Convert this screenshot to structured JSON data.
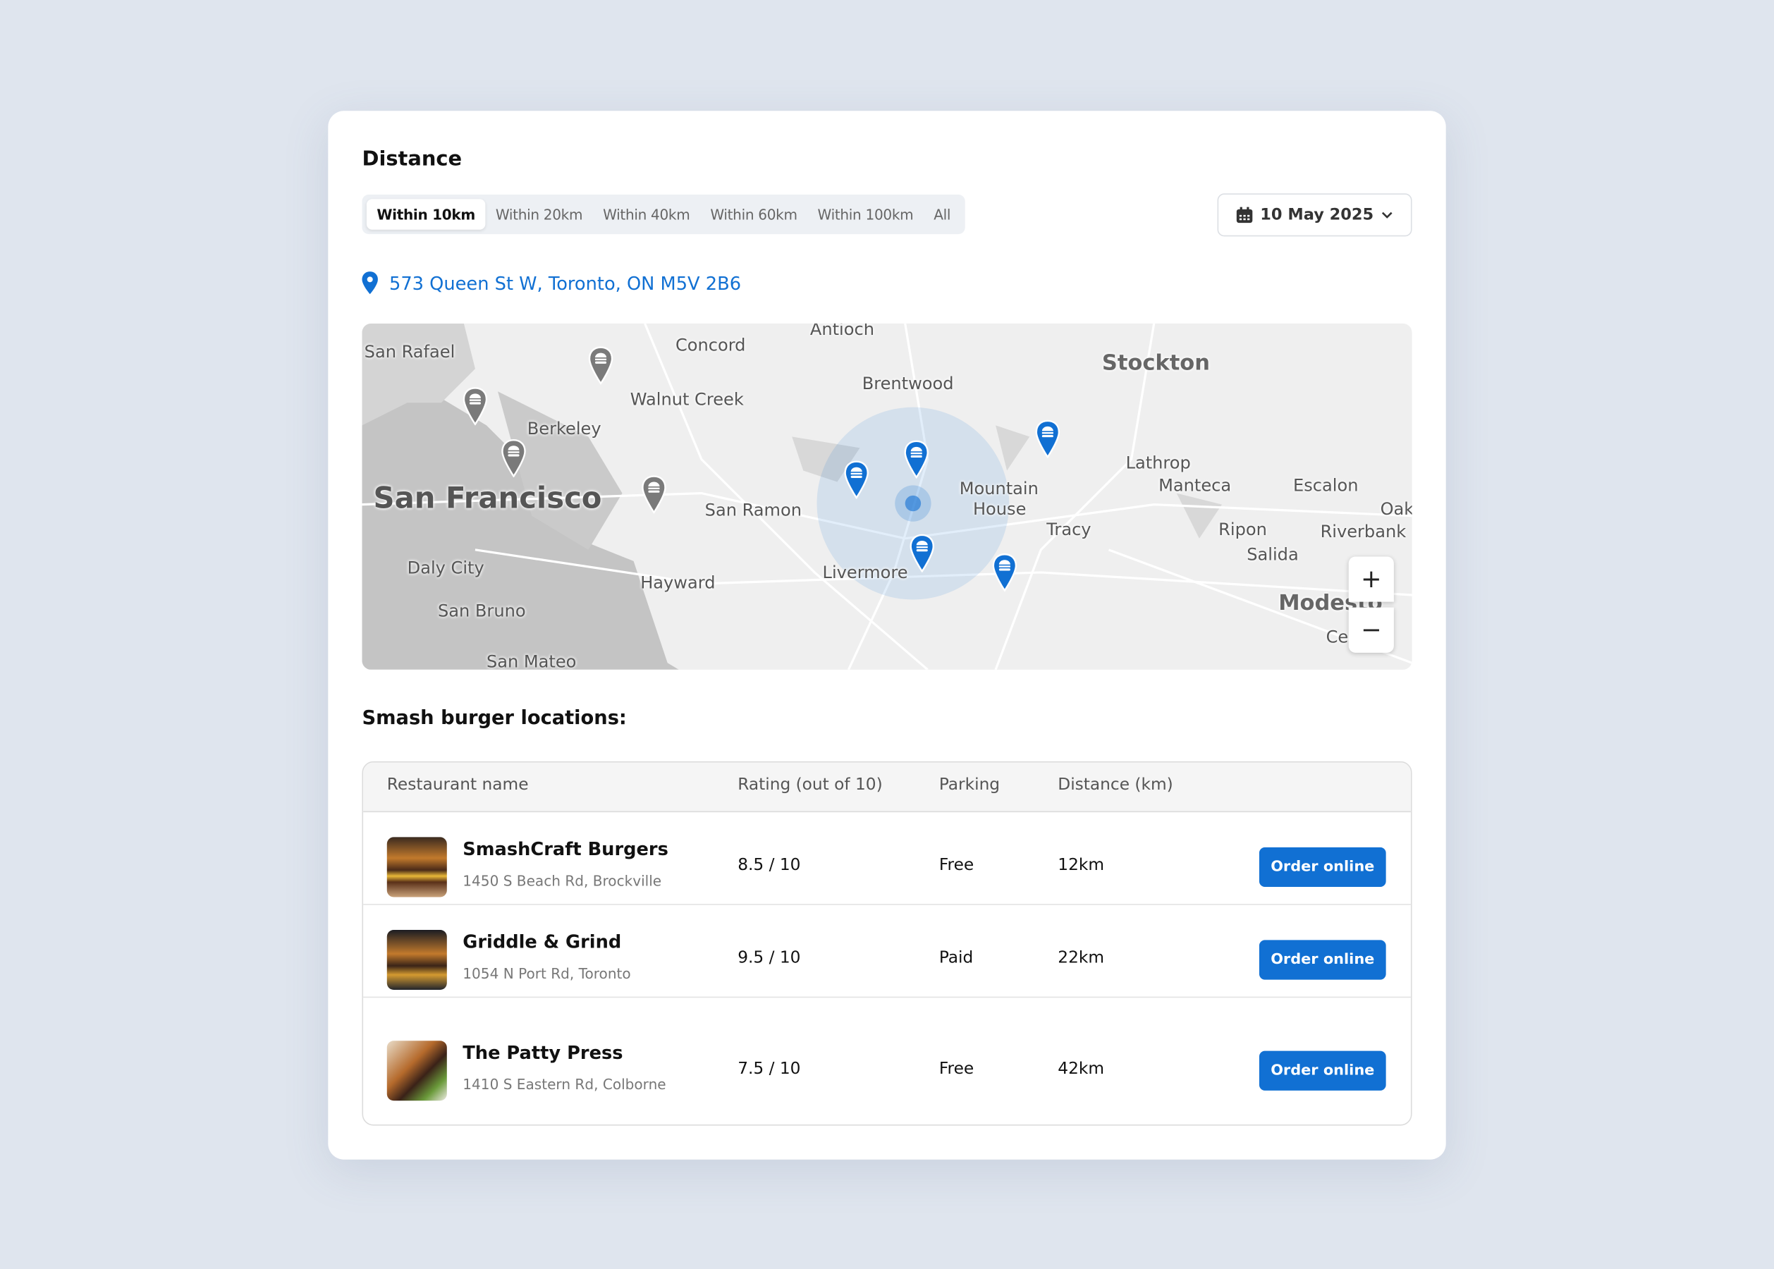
{
  "header": {
    "title": "Distance",
    "date": "10 May 2025"
  },
  "filters": [
    "Within 10km",
    "Within 20km",
    "Within 40km",
    "Within 60km",
    "Within 100km",
    "All"
  ],
  "active_filter": "Within 10km",
  "address": "573 Queen St W, Toronto, ON M5V 2B6",
  "map": {
    "labels": [
      "San Rafael",
      "Concord",
      "Walnut Creek",
      "Berkeley",
      "San Francisco",
      "Antioch",
      "Brentwood",
      "Stockton",
      "Lathrop",
      "Manteca",
      "Escalon",
      "Mountain",
      "House",
      "Tracy",
      "Ripon",
      "Salida",
      "Riverbank",
      "Oak",
      "San Ramon",
      "Daly City",
      "Hayward",
      "Livermore",
      "San Bruno",
      "San Mateo",
      "Modesto",
      "Ce"
    ],
    "zoom_in": "+",
    "zoom_out": "−",
    "accent": "#1170d3",
    "inactive_pin": "#7a7a7a"
  },
  "list_title": "Smash burger locations:",
  "table": {
    "headers": [
      "Restaurant name",
      "Rating (out of 10)",
      "Parking",
      "Distance (km)"
    ],
    "rows": [
      {
        "name": "SmashCraft Burgers",
        "address": "1450 S Beach Rd, Brockville",
        "rating": "8.5 / 10",
        "parking": "Free",
        "distance": "12km",
        "action": "Order online"
      },
      {
        "name": "Griddle & Grind",
        "address": "1054 N Port Rd, Toronto",
        "rating": "9.5 / 10",
        "parking": "Paid",
        "distance": "22km",
        "action": "Order online"
      },
      {
        "name": "The Patty Press",
        "address": "1410 S Eastern Rd, Colborne",
        "rating": "7.5 / 10",
        "parking": "Free",
        "distance": "42km",
        "action": "Order online"
      }
    ]
  }
}
